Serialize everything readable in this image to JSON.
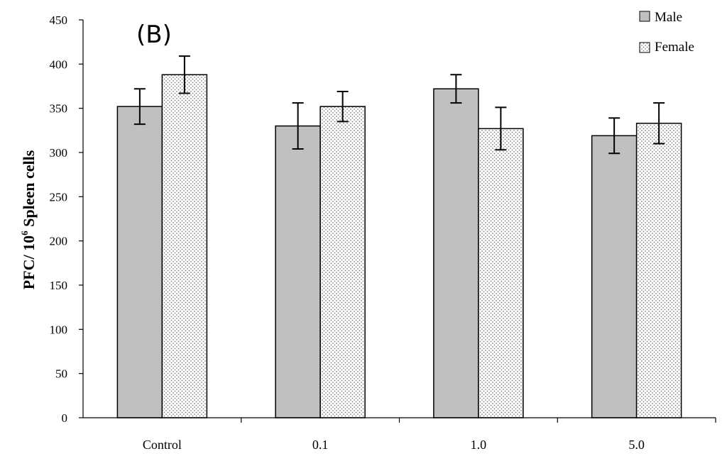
{
  "chart_data": {
    "type": "bar",
    "title": "(B)",
    "xlabel": "",
    "ylabel_main": "PFC/ 10",
    "ylabel_sup": "6",
    "ylabel_rest": " Spleen cells",
    "ylim": [
      0,
      450
    ],
    "yticks": [
      0,
      50,
      100,
      150,
      200,
      250,
      300,
      350,
      400,
      450
    ],
    "ytick_labels": [
      "0",
      "50",
      "100",
      "150",
      "200",
      "250",
      "300",
      "350",
      "400",
      "450"
    ],
    "categories": [
      "Control",
      "0.1",
      "1.0",
      "5.0"
    ],
    "series": [
      {
        "name": "Male",
        "fill": "solid",
        "values": [
          352,
          330,
          372,
          319
        ],
        "errors": [
          20,
          26,
          16,
          20
        ]
      },
      {
        "name": "Female",
        "fill": "dotted",
        "values": [
          388,
          352,
          327,
          333
        ],
        "errors": [
          21,
          17,
          24,
          23
        ]
      }
    ],
    "legend_position": "top-right"
  },
  "colors": {
    "male_fill": "#c0c0c0",
    "female_fill": "#ffffff",
    "stroke": "#000000",
    "dot": "#7a7a7a"
  }
}
